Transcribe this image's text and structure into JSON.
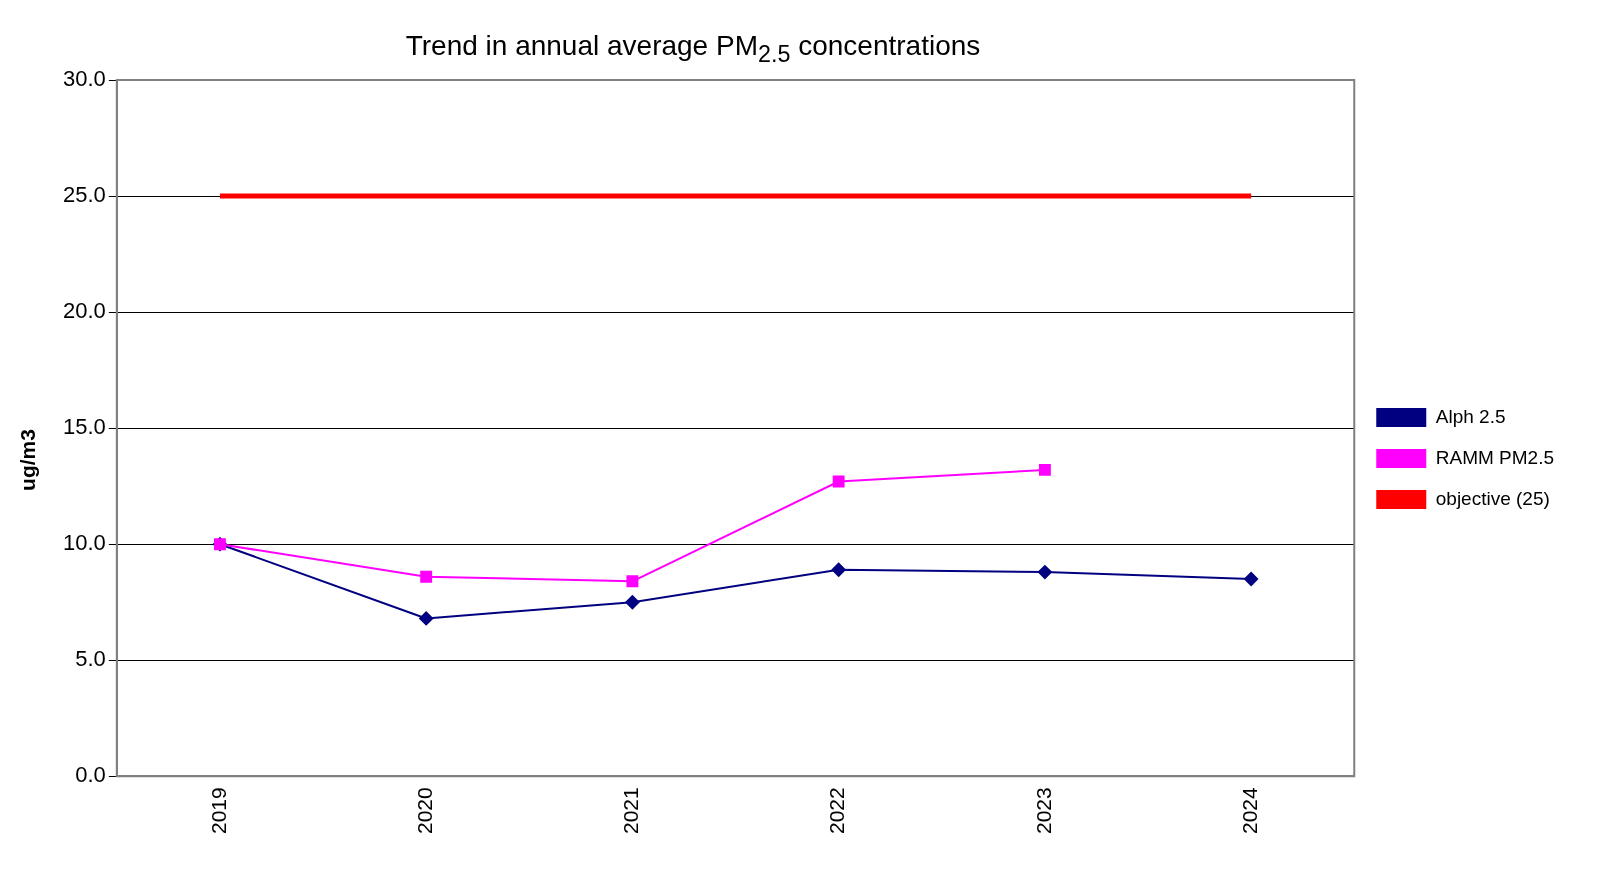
{
  "chart_data": {
    "type": "line",
    "title": "Trend in annual average PM$_{2.5}$ concentrations",
    "ylabel": "ug/m3",
    "categories": [
      "2019",
      "2020",
      "2021",
      "2022",
      "2023",
      "2024"
    ],
    "series": [
      {
        "name": "Alph 2.5",
        "color": "#000080",
        "marker": "diamond",
        "values": [
          10.0,
          6.8,
          7.5,
          8.9,
          8.8,
          8.5
        ]
      },
      {
        "name": "RAMM PM2.5",
        "color": "#ff00ff",
        "marker": "square",
        "values": [
          10.0,
          8.6,
          8.4,
          12.7,
          13.2,
          null
        ]
      },
      {
        "name": "objective (25)",
        "color": "#ff0000",
        "marker": "none",
        "values": [
          25,
          25,
          25,
          25,
          25,
          25
        ]
      }
    ],
    "ylim": [
      0,
      30
    ],
    "yticks": [
      {
        "value": 0,
        "label": "0.0"
      },
      {
        "value": 5,
        "label": "5.0"
      },
      {
        "value": 10,
        "label": "10.0"
      },
      {
        "value": 15,
        "label": "15.0"
      },
      {
        "value": 20,
        "label": "20.0"
      },
      {
        "value": 25,
        "label": "25.0"
      },
      {
        "value": 30,
        "label": "30.0"
      }
    ],
    "grid": "y",
    "legend": "right",
    "line_style": "solid"
  }
}
